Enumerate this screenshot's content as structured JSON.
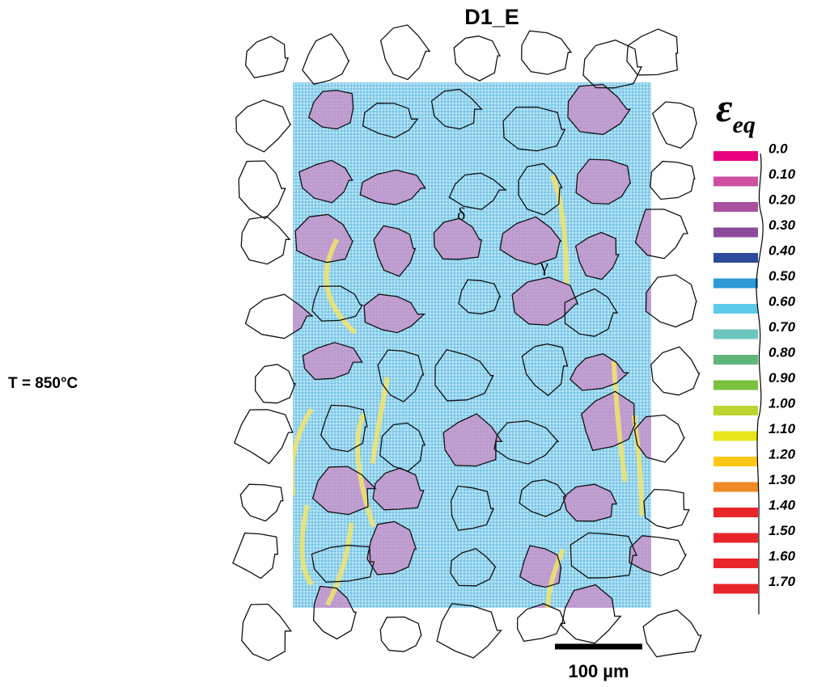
{
  "title": "D1_E",
  "temperature": "T = 850°C",
  "phases": [
    "δ",
    "γ"
  ],
  "legend": {
    "symbol": "ε",
    "subscript": "eq",
    "labels": [
      "0.0",
      "0.10",
      "0.20",
      "0.30",
      "0.40",
      "0.50",
      "0.60",
      "0.70",
      "0.80",
      "0.90",
      "1.00",
      "1.10",
      "1.20",
      "1.30",
      "1.40",
      "1.50",
      "1.60",
      "1.70"
    ],
    "colors": [
      "#e6007e",
      "#cc4fa0",
      "#a9509e",
      "#8b4a9c",
      "#2e4a9c",
      "#2f9ad7",
      "#5ecbe8",
      "#6dc5bf",
      "#5fb57c",
      "#7cc13e",
      "#bdd530",
      "#e9e51d",
      "#fcc816",
      "#f08a24",
      "#e8262a",
      "#e8262a",
      "#e8262a",
      "#e8262a"
    ]
  },
  "scale_bar": "100 µm"
}
